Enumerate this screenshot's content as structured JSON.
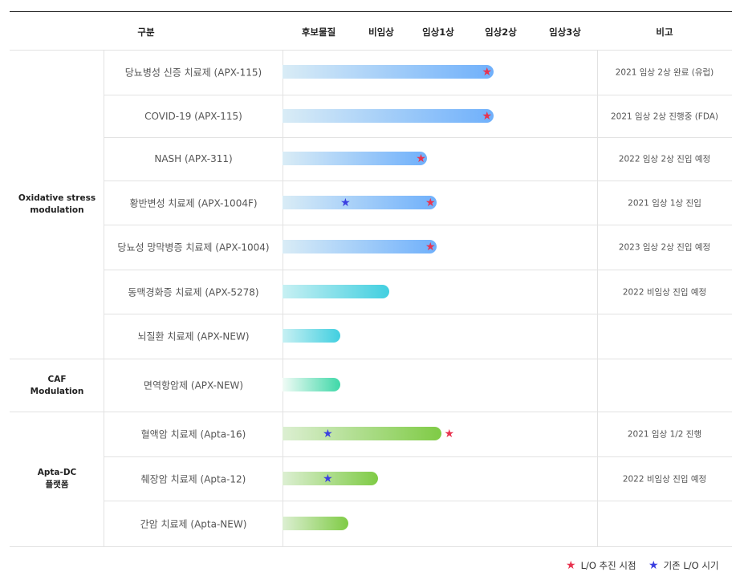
{
  "colors": {
    "lo_push_star": "#e8334f",
    "existing_lo_star": "#3b3fe0",
    "blue_gradient": [
      "#d9ecf6",
      "#6fb0fb"
    ],
    "cyan_gradient": [
      "#c7f0f3",
      "#41cfe0"
    ],
    "teal_gradient": [
      "#f1fbf6",
      "#3fd8a8"
    ],
    "green_gradient": [
      "#dcefd2",
      "#7fcb45"
    ]
  },
  "header": {
    "category": "구분",
    "stages": [
      "후보물질",
      "비임상",
      "임상1상",
      "임상2상",
      "임상3상"
    ],
    "note": "비고"
  },
  "groups": [
    {
      "label_lines": [
        "Oxidative stress",
        "modulation"
      ]
    },
    {
      "label_lines": [
        "CAF",
        "Modulation"
      ]
    },
    {
      "label_lines": [
        "Apta-DC",
        "플랫폼"
      ]
    }
  ],
  "chart_data": {
    "type": "bar",
    "categories": [
      "후보물질",
      "비임상",
      "임상1상",
      "임상2상",
      "임상3상"
    ],
    "value_unit": "development stage position (0 = start of 후보물질, 5 = end of 임상3상)",
    "xlim": [
      0,
      5
    ],
    "rows": [
      {
        "product": "당뇨병성 신증 치료제 (APX-115)",
        "group": 0,
        "progress": 3.35,
        "lo_push_star": 3.25,
        "existing_lo_star": null,
        "note": "2021 임상 2상 완료 (유럽)",
        "color": "blue"
      },
      {
        "product": "COVID-19 (APX-115)",
        "group": 0,
        "progress": 3.35,
        "lo_push_star": 3.25,
        "existing_lo_star": null,
        "note": "2021 임상 2상 진행중 (FDA)",
        "color": "blue"
      },
      {
        "product": "NASH (APX-311)",
        "group": 0,
        "progress": 2.3,
        "lo_push_star": 2.2,
        "existing_lo_star": null,
        "note": "2022 임상 2상 진입 예정",
        "color": "blue"
      },
      {
        "product": "황반변성 치료제 (APX-1004F)",
        "group": 0,
        "progress": 2.45,
        "lo_push_star": 2.35,
        "existing_lo_star": 1.0,
        "note": "2021 임상 1상 진입",
        "color": "blue"
      },
      {
        "product": "당뇨성 망막병증 치료제 (APX-1004)",
        "group": 0,
        "progress": 2.45,
        "lo_push_star": 2.35,
        "existing_lo_star": null,
        "note": "2023 임상 2상 진입 예정",
        "color": "blue"
      },
      {
        "product": "동맥경화증 치료제 (APX-5278)",
        "group": 0,
        "progress": 1.7,
        "lo_push_star": null,
        "existing_lo_star": null,
        "note": "2022 비임상 진입 예정",
        "color": "cyan"
      },
      {
        "product": "뇌질환 치료제 (APX-NEW)",
        "group": 0,
        "progress": 0.92,
        "lo_push_star": null,
        "existing_lo_star": null,
        "note": "",
        "color": "cyan"
      },
      {
        "product": "면역항암제 (APX-NEW)",
        "group": 1,
        "progress": 0.92,
        "lo_push_star": null,
        "existing_lo_star": null,
        "note": "",
        "color": "teal"
      },
      {
        "product": "혈액암 치료제 (Apta-16)",
        "group": 2,
        "progress": 2.52,
        "lo_push_star": 2.65,
        "existing_lo_star": 0.72,
        "note": "2021 임상 1/2 진행",
        "color": "green"
      },
      {
        "product": "췌장암 치료제 (Apta-12)",
        "group": 2,
        "progress": 1.52,
        "lo_push_star": null,
        "existing_lo_star": 0.72,
        "note": "2022 비임상 진입 예정",
        "color": "green"
      },
      {
        "product": "간암 치료제 (Apta-NEW)",
        "group": 2,
        "progress": 1.05,
        "lo_push_star": null,
        "existing_lo_star": null,
        "note": "",
        "color": "green"
      }
    ]
  },
  "legend": {
    "lo_push": "L/O 추진 시점",
    "existing_lo": "기존 L/O 시기",
    "star_icon": "★"
  }
}
